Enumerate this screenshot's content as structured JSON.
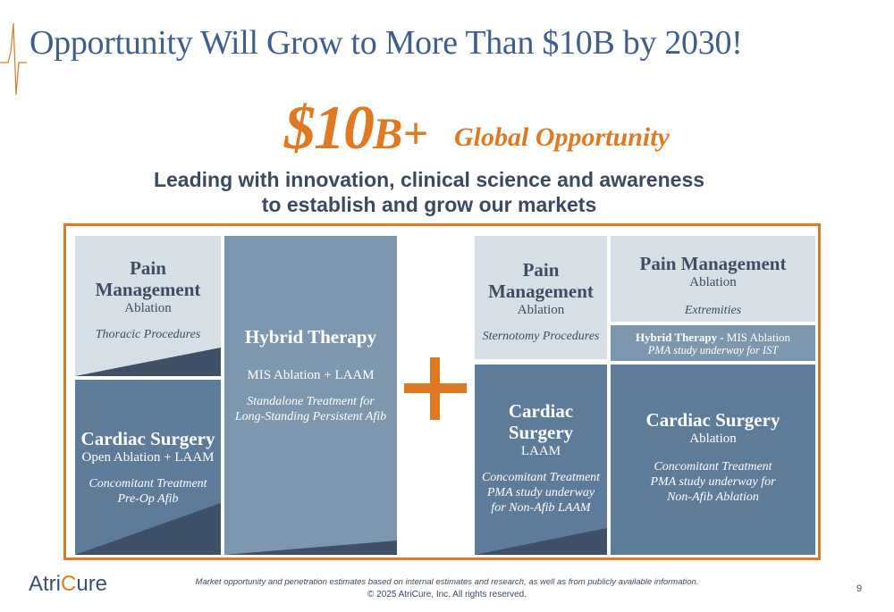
{
  "slide": {
    "title": "Opportunity Will Grow to More Than $10B by 2030!",
    "big_amount_number": "$10",
    "big_amount_suffix": "B+",
    "big_amount_label": "Global Opportunity",
    "subtitle_line1": "Leading with innovation, clinical science and awareness",
    "subtitle_line2": "to establish and grow our markets"
  },
  "left_group": {
    "pain_box": {
      "title_line1": "Pain",
      "title_line2": "Management",
      "subtitle": "Ablation",
      "detail": "Thoracic Procedures"
    },
    "cardiac_box": {
      "title": "Cardiac Surgery",
      "subtitle": "Open Ablation + LAAM",
      "detail_line1": "Concomitant Treatment",
      "detail_line2": "Pre-Op Afib"
    },
    "hybrid_box": {
      "title": "Hybrid Therapy",
      "subtitle": "MIS Ablation + LAAM",
      "detail_line1": "Standalone Treatment  for",
      "detail_line2": "Long-Standing Persistent Afib"
    }
  },
  "plus_symbol": "+",
  "right_group": {
    "pain_box": {
      "title_line1": "Pain",
      "title_line2": "Management",
      "subtitle": "Ablation",
      "detail": "Sternotomy Procedures"
    },
    "pain_box2": {
      "title": "Pain Management",
      "subtitle": "Ablation",
      "detail": "Extremities"
    },
    "hybrid_box": {
      "title": "Hybrid Therapy - ",
      "subtitle": "MIS Ablation",
      "detail": "PMA study underway for IST"
    },
    "cardiac_box": {
      "title_line1": "Cardiac",
      "title_line2": "Surgery",
      "subtitle": "LAAM",
      "detail_line1": "Concomitant Treatment",
      "detail_line2": "PMA study underway",
      "detail_line3": "for  Non-Afib LAAM"
    },
    "cardiac_box2": {
      "title": "Cardiac Surgery",
      "subtitle": "Ablation",
      "detail_line1": "Concomitant Treatment",
      "detail_line2": "PMA study underway for",
      "detail_line3": "Non-Afib Ablation"
    }
  },
  "footer": {
    "logo_part1": "Atri",
    "logo_part2": "C",
    "logo_part3": "ure",
    "disclaimer": "Market opportunity and penetration estimates based on internal estimates and research, as well as from publicly available information.",
    "copyright": "© 2025 AtriCure, Inc. All rights reserved.",
    "page_number": "9"
  },
  "colors": {
    "accent_orange": "#e07a22",
    "title_blue": "#3f5e8e",
    "box_light": "#d6dfe6",
    "box_mid": "#7d98ae",
    "box_dark": "#5c7c99",
    "wedge": "#3d5066"
  }
}
